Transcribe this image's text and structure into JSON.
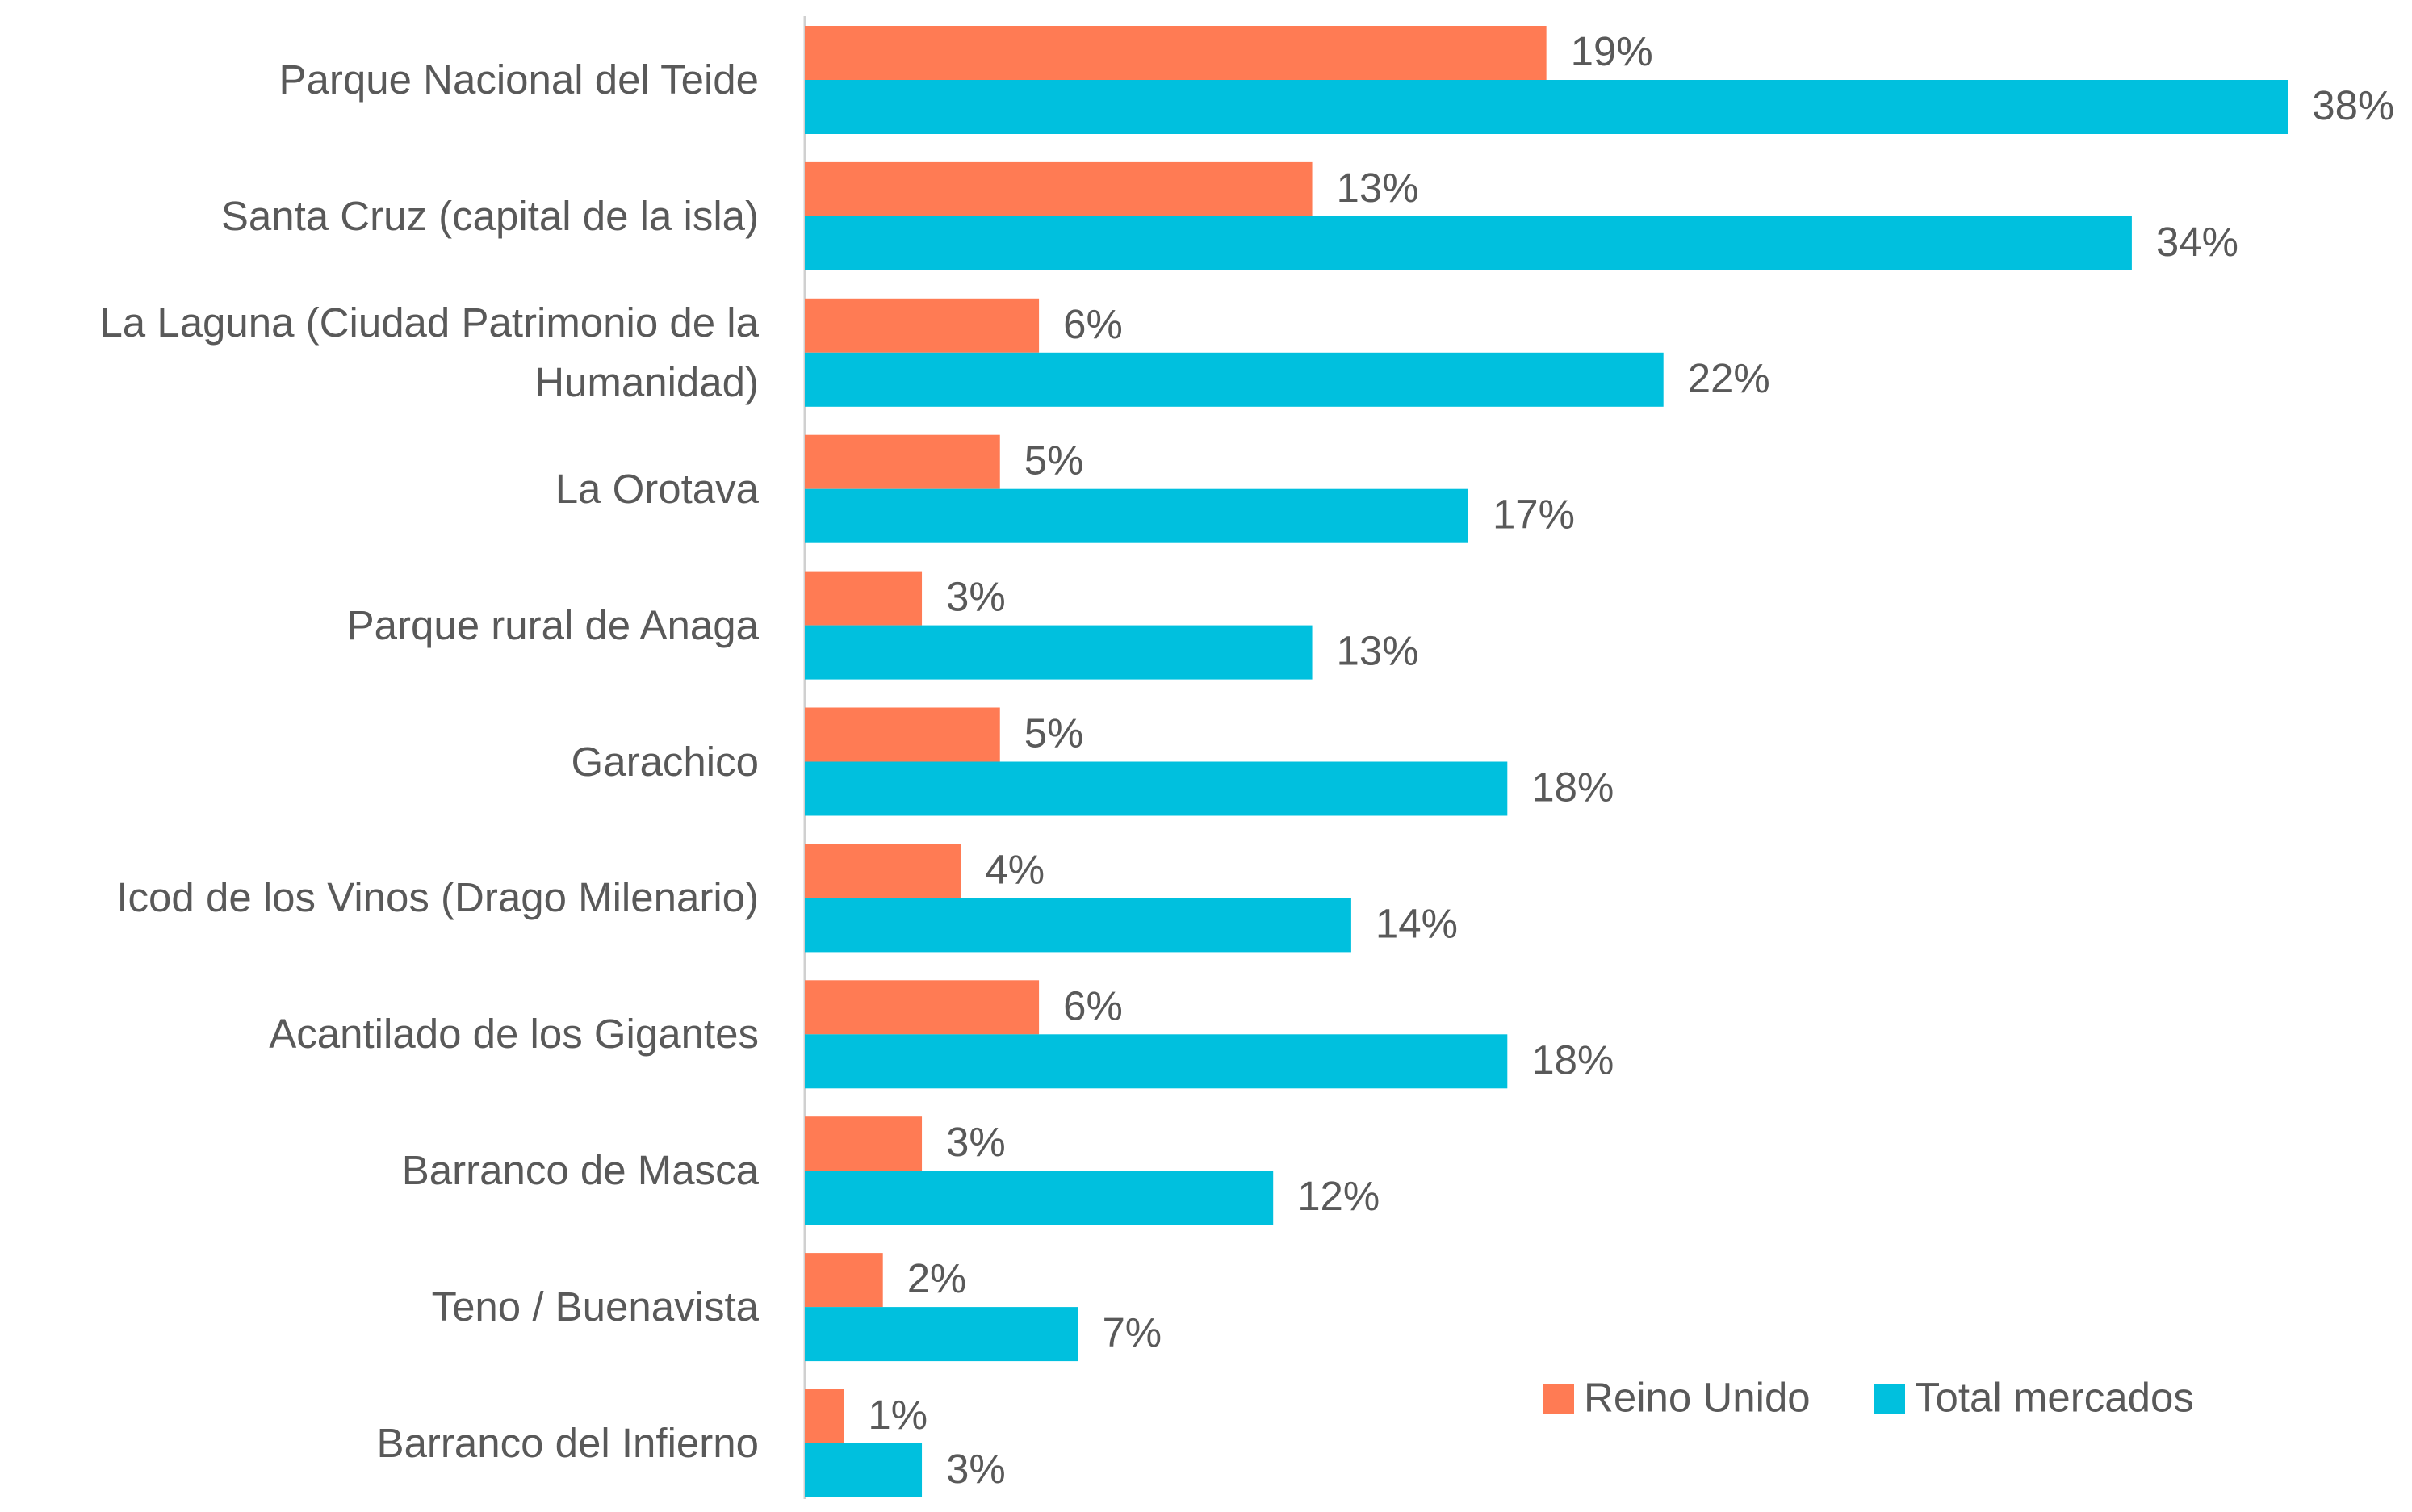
{
  "chart_data": {
    "type": "bar",
    "orientation": "horizontal",
    "categories": [
      "Parque Nacional del Teide",
      "Santa Cruz (capital de la isla)",
      "La Laguna (Ciudad Patrimonio de la Humanidad)",
      "La Orotava",
      "Parque rural de Anaga",
      "Garachico",
      "Icod de los Vinos (Drago Milenario)",
      "Acantilado de los Gigantes",
      "Barranco de Masca",
      "Teno / Buenavista",
      "Barranco del Infierno"
    ],
    "series": [
      {
        "name": "Reino Unido",
        "color": "#ff7b54",
        "values": [
          19,
          13,
          6,
          5,
          3,
          5,
          4,
          6,
          3,
          2,
          1
        ],
        "value_labels": [
          "19%",
          "13%",
          "6%",
          "5%",
          "3%",
          "5%",
          "4%",
          "6%",
          "3%",
          "2%",
          "1%"
        ]
      },
      {
        "name": "Total mercados",
        "color": "#00c0de",
        "values": [
          38,
          34,
          22,
          17,
          13,
          18,
          14,
          18,
          12,
          7,
          3
        ],
        "value_labels": [
          "38%",
          "34%",
          "22%",
          "17%",
          "13%",
          "18%",
          "14%",
          "18%",
          "12%",
          "7%",
          "3%"
        ]
      }
    ],
    "xlim": [
      0,
      40
    ],
    "legend": "lower right"
  }
}
